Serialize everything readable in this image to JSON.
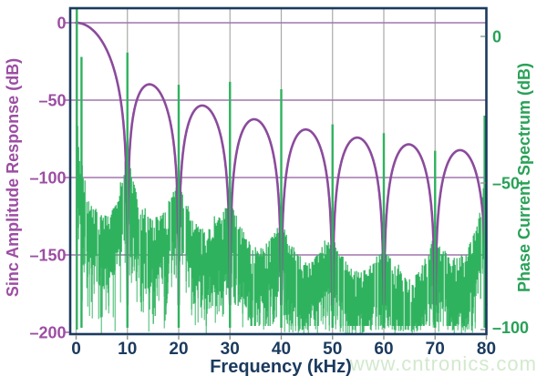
{
  "watermark": {
    "text": "www.cntronics.com",
    "color": "#d2e9cd"
  },
  "chart_data": {
    "type": "line",
    "title": "",
    "xlabel": "Frequency (kHz)",
    "x_range": [
      0,
      80
    ],
    "x_ticks": [
      0,
      10,
      20,
      30,
      40,
      50,
      60,
      70,
      80
    ],
    "x_tick_labels": [
      "0",
      "10",
      "20",
      "30",
      "40",
      "50",
      "60",
      "70",
      "80"
    ],
    "grid": true,
    "background": "#ffffff",
    "border_color": "#1b3a5e",
    "grid_color_vertical": "#a6aba6",
    "grid_color_horizontal": "#a077ae",
    "tick_color": "#8e968f",
    "x_label_color": "#1b3a5e",
    "left_axis": {
      "label": "Sinc Amplitude Response (dB)",
      "color": "#9c4ea3",
      "range": [
        -200,
        0
      ],
      "ticks": [
        0,
        -50,
        -100,
        -150,
        -200
      ],
      "tick_labels": [
        "0",
        "–50",
        "–100",
        "–150",
        "–200"
      ]
    },
    "right_axis": {
      "label": "Phase Current Spectrum (dB)",
      "color": "#29a157",
      "range": [
        -100,
        0
      ],
      "ticks": [
        0,
        -50,
        -100
      ],
      "tick_labels": [
        "0",
        "–50",
        "–100"
      ]
    },
    "series": [
      {
        "name": "Sinc Amplitude Response",
        "axis": "left",
        "color": "#8b4b9c",
        "model": "sinc3",
        "null_spacing_khz": 10,
        "clip_db": -182,
        "lobe_peaks_db": [
          -39.8,
          -53.5,
          -61.7,
          -67.8,
          -72.6,
          -76.5,
          -79.9
        ]
      },
      {
        "name": "Phase Current Spectrum",
        "axis": "right",
        "color": "#2fb25e",
        "fundamental": {
          "f_khz": 0.15,
          "db_top_of_plot": true
        },
        "harmonics": [
          {
            "f_khz": 1.05,
            "db": -7
          },
          {
            "f_khz": 10,
            "db": -5.5
          },
          {
            "f_khz": 20,
            "db": -16.5
          },
          {
            "f_khz": 30,
            "db": -15.5
          },
          {
            "f_khz": 40,
            "db": -18
          },
          {
            "f_khz": 50,
            "db": -30
          },
          {
            "f_khz": 60,
            "db": -33
          },
          {
            "f_khz": 70,
            "db": -39
          },
          {
            "f_khz": 80,
            "db": -27
          }
        ],
        "noise_envelope_db": [
          [
            0.1,
            -10
          ],
          [
            0.35,
            -32
          ],
          [
            0.8,
            -46
          ],
          [
            1.3,
            -43
          ],
          [
            2,
            -53
          ],
          [
            3,
            -57
          ],
          [
            4.5,
            -60
          ],
          [
            6,
            -61
          ],
          [
            7.5,
            -58
          ],
          [
            8.5,
            -53
          ],
          [
            9.3,
            -46
          ],
          [
            9.8,
            -37
          ],
          [
            10,
            -34
          ],
          [
            10.2,
            -37
          ],
          [
            10.8,
            -47
          ],
          [
            12,
            -55
          ],
          [
            13.5,
            -60
          ],
          [
            15,
            -62
          ],
          [
            16.5,
            -61
          ],
          [
            18,
            -57
          ],
          [
            19.2,
            -52
          ],
          [
            19.8,
            -48
          ],
          [
            20,
            -47
          ],
          [
            20.2,
            -48
          ],
          [
            21,
            -55
          ],
          [
            22.5,
            -62
          ],
          [
            24,
            -65
          ],
          [
            25.5,
            -66
          ],
          [
            27,
            -64
          ],
          [
            28.5,
            -61
          ],
          [
            29.5,
            -56
          ],
          [
            30,
            -53
          ],
          [
            30.5,
            -56
          ],
          [
            31.5,
            -62
          ],
          [
            33,
            -68
          ],
          [
            34.5,
            -71
          ],
          [
            36,
            -72
          ],
          [
            37.5,
            -70
          ],
          [
            38.7,
            -67
          ],
          [
            39.6,
            -64
          ],
          [
            40,
            -62
          ],
          [
            40.4,
            -64
          ],
          [
            41.5,
            -69
          ],
          [
            43,
            -74
          ],
          [
            44.5,
            -76
          ],
          [
            46,
            -76
          ],
          [
            47.5,
            -74
          ],
          [
            48.7,
            -71
          ],
          [
            49.6,
            -69
          ],
          [
            50,
            -67
          ],
          [
            50.4,
            -69
          ],
          [
            51.5,
            -73
          ],
          [
            53,
            -78
          ],
          [
            54.5,
            -80
          ],
          [
            56,
            -80
          ],
          [
            57.5,
            -78
          ],
          [
            58.7,
            -75
          ],
          [
            59.6,
            -73
          ],
          [
            60,
            -71
          ],
          [
            60.4,
            -73
          ],
          [
            61.5,
            -76
          ],
          [
            63,
            -80
          ],
          [
            64.5,
            -83
          ],
          [
            66,
            -82
          ],
          [
            67.5,
            -78
          ],
          [
            68.7,
            -73
          ],
          [
            69.6,
            -69
          ],
          [
            70,
            -67
          ],
          [
            70.4,
            -69
          ],
          [
            71.5,
            -72
          ],
          [
            72.5,
            -75
          ],
          [
            74,
            -76
          ],
          [
            75.5,
            -74
          ],
          [
            77,
            -70
          ],
          [
            78.2,
            -64
          ],
          [
            79,
            -57
          ],
          [
            79.6,
            -48
          ],
          [
            80,
            -38
          ]
        ],
        "noise_bottom_db": -100
      }
    ]
  }
}
